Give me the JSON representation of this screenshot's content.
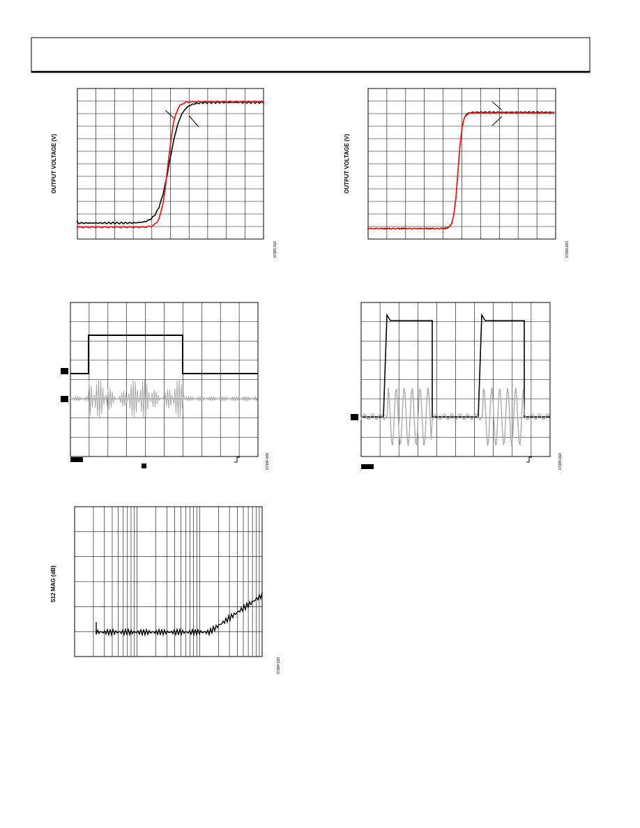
{
  "figures": [
    {
      "y_label": "OUTPUT VOLTAGE (V)",
      "id": "07384-062"
    },
    {
      "y_label": "OUTPUT VOLTAGE (V)",
      "id": "07384-063"
    },
    {
      "id": "07384-065"
    },
    {
      "id": "07384-064"
    },
    {
      "y_label": "S12 MAG (dB)",
      "id": "07384-023"
    }
  ]
}
